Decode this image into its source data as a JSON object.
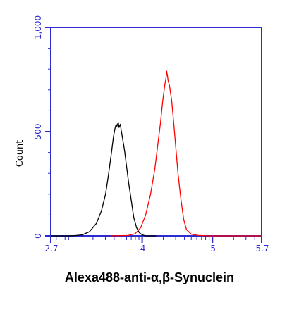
{
  "chart_data": {
    "type": "line",
    "xlabel": "Alexa488-anti-α,β-Synuclein",
    "ylabel": "Count",
    "xscale": "log",
    "x_ticks": [
      "2.7",
      "4",
      "5",
      "5.7"
    ],
    "y_ticks": [
      "0",
      "500",
      "1,000"
    ],
    "ylim": [
      0,
      1000
    ],
    "xlim": [
      2.7,
      5.7
    ],
    "grid": false,
    "legend": "none",
    "colors": {
      "axes": "#2b2bd0",
      "ticks": "#2b2bd0",
      "control": "#000000",
      "stained": "#ff0000"
    },
    "series": [
      {
        "color": "#000000",
        "points": [
          [
            2.7,
            0
          ],
          [
            3.0,
            0
          ],
          [
            3.15,
            5
          ],
          [
            3.25,
            20
          ],
          [
            3.35,
            60
          ],
          [
            3.42,
            120
          ],
          [
            3.48,
            200
          ],
          [
            3.52,
            290
          ],
          [
            3.56,
            390
          ],
          [
            3.59,
            470
          ],
          [
            3.61,
            510
          ],
          [
            3.63,
            535
          ],
          [
            3.64,
            525
          ],
          [
            3.66,
            545
          ],
          [
            3.67,
            520
          ],
          [
            3.69,
            535
          ],
          [
            3.7,
            510
          ],
          [
            3.72,
            470
          ],
          [
            3.75,
            410
          ],
          [
            3.78,
            330
          ],
          [
            3.81,
            250
          ],
          [
            3.85,
            160
          ],
          [
            3.88,
            90
          ],
          [
            3.92,
            40
          ],
          [
            3.96,
            15
          ],
          [
            4.0,
            5
          ],
          [
            4.05,
            0
          ],
          [
            4.2,
            0
          ]
        ]
      },
      {
        "color": "#ff0000",
        "points": [
          [
            3.55,
            0
          ],
          [
            3.8,
            2
          ],
          [
            3.9,
            10
          ],
          [
            3.98,
            40
          ],
          [
            4.05,
            100
          ],
          [
            4.12,
            200
          ],
          [
            4.18,
            320
          ],
          [
            4.22,
            430
          ],
          [
            4.26,
            540
          ],
          [
            4.29,
            640
          ],
          [
            4.32,
            720
          ],
          [
            4.34,
            760
          ],
          [
            4.35,
            790
          ],
          [
            4.36,
            770
          ],
          [
            4.37,
            745
          ],
          [
            4.39,
            720
          ],
          [
            4.42,
            650
          ],
          [
            4.45,
            540
          ],
          [
            4.48,
            420
          ],
          [
            4.51,
            300
          ],
          [
            4.55,
            180
          ],
          [
            4.59,
            80
          ],
          [
            4.63,
            30
          ],
          [
            4.7,
            8
          ],
          [
            4.8,
            2
          ],
          [
            4.95,
            0
          ],
          [
            5.4,
            0
          ],
          [
            5.7,
            0
          ]
        ]
      }
    ]
  }
}
